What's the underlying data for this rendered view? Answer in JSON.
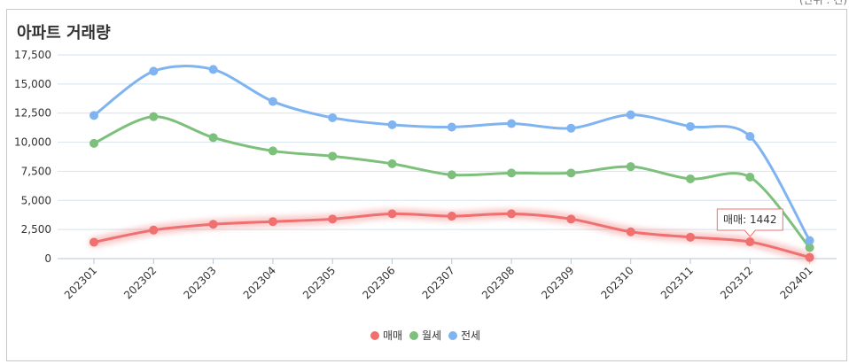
{
  "unit_note": "(단위 : 건)",
  "chart_data": {
    "type": "line",
    "title": "아파트 거래량",
    "categories": [
      "202301",
      "202302",
      "202303",
      "202304",
      "202305",
      "202306",
      "202307",
      "202308",
      "202309",
      "202310",
      "202311",
      "202312",
      "202401"
    ],
    "ylim": [
      0,
      17500
    ],
    "yticks": [
      "0",
      "2,500",
      "5,000",
      "7,500",
      "10,000",
      "12,500",
      "15,000",
      "17,500"
    ],
    "grid": true,
    "legend_position": "bottom-center",
    "highlighted_series": "매매",
    "series": [
      {
        "name": "매매",
        "color": "#f07070",
        "values": [
          1410,
          2450,
          2950,
          3180,
          3400,
          3850,
          3650,
          3850,
          3400,
          2300,
          1840,
          1442,
          100
        ]
      },
      {
        "name": "월세",
        "color": "#7cc07c",
        "values": [
          9900,
          12200,
          10400,
          9250,
          8800,
          8150,
          7200,
          7350,
          7350,
          7900,
          6850,
          7000,
          950
        ]
      },
      {
        "name": "전세",
        "color": "#7fb4f0",
        "values": [
          12300,
          16100,
          16250,
          13500,
          12100,
          11500,
          11300,
          11600,
          11200,
          12350,
          11350,
          10500,
          1550
        ]
      }
    ],
    "tooltip": {
      "series": "매매",
      "category": "202312",
      "label": "매매: 1442"
    }
  }
}
